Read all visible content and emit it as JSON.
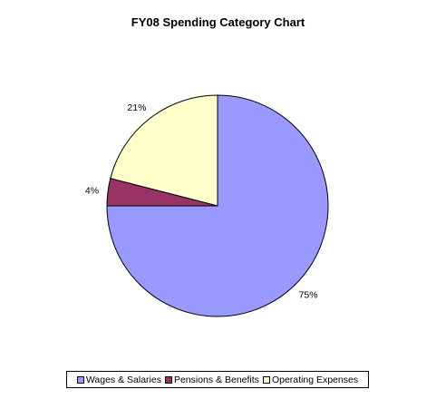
{
  "chart_data": {
    "type": "pie",
    "title": "FY08 Spending Category Chart",
    "slices": [
      {
        "label": "Wages & Salaries",
        "value": 75,
        "data_label": "75%",
        "color": "#9999ff"
      },
      {
        "label": "Pensions & Benefits",
        "value": 4,
        "data_label": "4%",
        "color": "#993366"
      },
      {
        "label": "Operating Expenses",
        "value": 21,
        "data_label": "21%",
        "color": "#ffffcc"
      }
    ],
    "legend_position": "bottom"
  }
}
